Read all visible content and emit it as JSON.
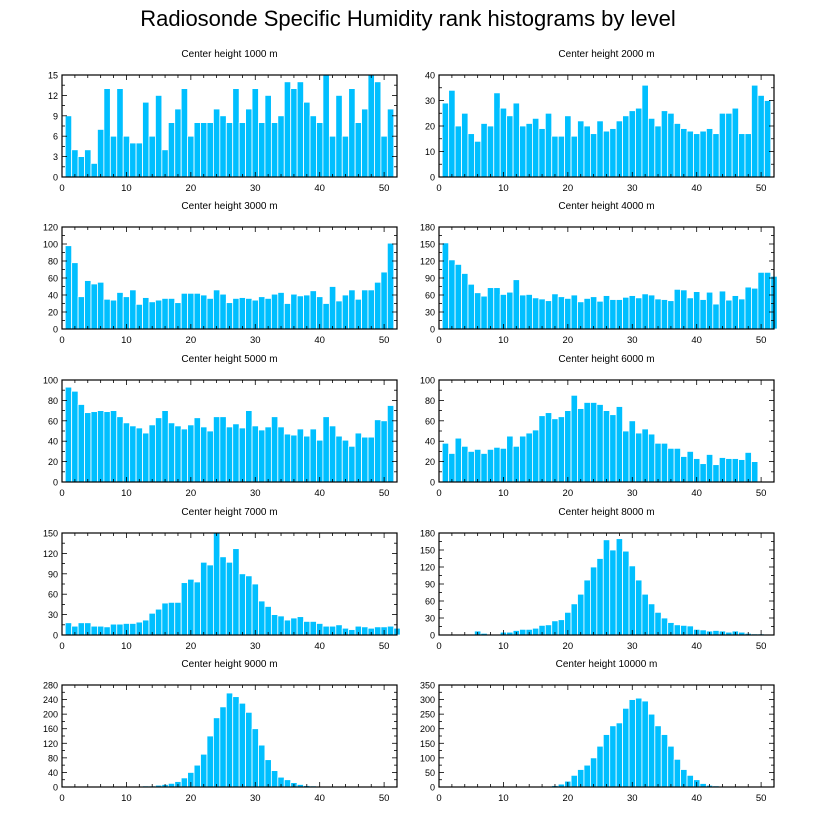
{
  "title": "Radiosonde Specific Humidity rank histograms by level",
  "colors": {
    "bar": "#00BFFF",
    "bar_edge": "#ffffff",
    "axis": "#000000"
  },
  "chart_data": [
    {
      "type": "bar",
      "title": "Center height 1000 m",
      "ylim": [
        0,
        15
      ],
      "yticks": [
        0,
        3,
        6,
        9,
        12,
        15
      ],
      "xlim": [
        0,
        52
      ],
      "xticks": [
        0,
        10,
        20,
        30,
        40,
        50
      ],
      "values": [
        9,
        4,
        3,
        4,
        2,
        7,
        13,
        6,
        13,
        6,
        5,
        5,
        11,
        6,
        12,
        4,
        8,
        10,
        13,
        6,
        8,
        8,
        8,
        10,
        9,
        8,
        13,
        8,
        10,
        13,
        8,
        12,
        8,
        9,
        14,
        13,
        14,
        11,
        9,
        8,
        15,
        6,
        12,
        6,
        13,
        8,
        10,
        15,
        14,
        6,
        10
      ]
    },
    {
      "type": "bar",
      "title": "Center height 2000 m",
      "ylim": [
        0,
        40
      ],
      "yticks": [
        0,
        10,
        20,
        30,
        40
      ],
      "xlim": [
        0,
        52
      ],
      "xticks": [
        0,
        10,
        20,
        30,
        40,
        50
      ],
      "values": [
        29,
        34,
        20,
        25,
        17,
        14,
        21,
        20,
        33,
        27,
        24,
        29,
        20,
        21,
        23,
        19,
        25,
        16,
        16,
        24,
        16,
        22,
        20,
        17,
        22,
        18,
        19,
        22,
        24,
        26,
        27,
        36,
        23,
        20,
        26,
        25,
        21,
        19,
        18,
        17,
        18,
        19,
        17,
        25,
        25,
        27,
        17,
        17,
        36,
        32,
        30
      ]
    },
    {
      "type": "bar",
      "title": "Center height 3000 m",
      "ylim": [
        0,
        120
      ],
      "yticks": [
        0,
        20,
        40,
        60,
        80,
        100,
        120
      ],
      "xlim": [
        0,
        52
      ],
      "xticks": [
        0,
        10,
        20,
        30,
        40,
        50
      ],
      "values": [
        98,
        78,
        38,
        57,
        53,
        55,
        35,
        34,
        43,
        38,
        46,
        29,
        37,
        32,
        34,
        36,
        36,
        31,
        42,
        42,
        42,
        40,
        36,
        46,
        41,
        31,
        36,
        37,
        36,
        34,
        38,
        36,
        41,
        43,
        30,
        41,
        39,
        40,
        45,
        38,
        30,
        50,
        33,
        40,
        46,
        35,
        46,
        46,
        55,
        67,
        101
      ]
    },
    {
      "type": "bar",
      "title": "Center height 4000 m",
      "ylim": [
        0,
        180
      ],
      "yticks": [
        0,
        30,
        60,
        90,
        120,
        150,
        180
      ],
      "xlim": [
        0,
        52
      ],
      "xticks": [
        0,
        10,
        20,
        30,
        40,
        50
      ],
      "values": [
        152,
        122,
        114,
        98,
        79,
        64,
        58,
        73,
        73,
        61,
        65,
        87,
        60,
        61,
        55,
        53,
        50,
        62,
        57,
        54,
        60,
        48,
        54,
        57,
        49,
        59,
        52,
        52,
        56,
        59,
        55,
        62,
        60,
        53,
        52,
        50,
        70,
        69,
        55,
        66,
        52,
        65,
        44,
        67,
        51,
        59,
        53,
        74,
        72,
        100,
        100,
        93
      ]
    },
    {
      "type": "bar",
      "title": "Center height 5000 m",
      "ylim": [
        0,
        100
      ],
      "yticks": [
        0,
        20,
        40,
        60,
        80,
        100
      ],
      "xlim": [
        0,
        52
      ],
      "xticks": [
        0,
        10,
        20,
        30,
        40,
        50
      ],
      "values": [
        93,
        89,
        76,
        68,
        69,
        70,
        69,
        70,
        64,
        58,
        55,
        53,
        48,
        56,
        63,
        70,
        58,
        55,
        52,
        56,
        63,
        54,
        50,
        64,
        64,
        54,
        57,
        53,
        70,
        55,
        51,
        54,
        64,
        54,
        47,
        46,
        52,
        45,
        52,
        41,
        64,
        55,
        45,
        41,
        35,
        48,
        44,
        44,
        61,
        60,
        75
      ]
    },
    {
      "type": "bar",
      "title": "Center height 6000 m",
      "ylim": [
        0,
        100
      ],
      "yticks": [
        0,
        20,
        40,
        60,
        80,
        100
      ],
      "xlim": [
        0,
        52
      ],
      "xticks": [
        0,
        10,
        20,
        30,
        40,
        50
      ],
      "values": [
        38,
        28,
        43,
        35,
        30,
        32,
        28,
        32,
        34,
        33,
        45,
        35,
        45,
        48,
        51,
        65,
        68,
        62,
        64,
        70,
        85,
        72,
        78,
        78,
        76,
        70,
        66,
        74,
        50,
        60,
        48,
        52,
        47,
        38,
        38,
        33,
        33,
        25,
        30,
        23,
        18,
        27,
        17,
        24,
        23,
        23,
        22,
        29,
        20
      ]
    },
    {
      "type": "bar",
      "title": "Center height 7000 m",
      "ylim": [
        0,
        150
      ],
      "yticks": [
        0,
        30,
        60,
        90,
        120,
        150
      ],
      "xlim": [
        0,
        52
      ],
      "xticks": [
        0,
        10,
        20,
        30,
        40,
        50
      ],
      "values": [
        18,
        13,
        18,
        18,
        13,
        13,
        12,
        16,
        16,
        17,
        17,
        19,
        22,
        32,
        38,
        47,
        48,
        48,
        77,
        82,
        78,
        107,
        103,
        150,
        115,
        107,
        127,
        90,
        87,
        75,
        50,
        42,
        30,
        28,
        22,
        25,
        27,
        20,
        20,
        17,
        13,
        13,
        15,
        10,
        8,
        13,
        12,
        10,
        12,
        12,
        13,
        10
      ]
    },
    {
      "type": "bar",
      "title": "Center height 8000 m",
      "ylim": [
        0,
        180
      ],
      "yticks": [
        0,
        30,
        60,
        90,
        120,
        150,
        180
      ],
      "xlim": [
        0,
        52
      ],
      "xticks": [
        0,
        10,
        20,
        30,
        40,
        50
      ],
      "values": [
        0,
        0,
        0,
        0,
        0,
        7,
        3,
        0,
        0,
        5,
        5,
        8,
        10,
        10,
        12,
        17,
        18,
        25,
        27,
        40,
        55,
        72,
        97,
        120,
        135,
        168,
        150,
        170,
        148,
        122,
        97,
        72,
        55,
        40,
        30,
        22,
        18,
        17,
        16,
        10,
        9,
        7,
        8,
        7,
        5,
        7,
        5,
        3,
        2,
        2,
        1
      ]
    },
    {
      "type": "bar",
      "title": "Center height 9000 m",
      "ylim": [
        0,
        280
      ],
      "yticks": [
        0,
        40,
        80,
        120,
        160,
        200,
        240,
        280
      ],
      "xlim": [
        0,
        52
      ],
      "xticks": [
        0,
        10,
        20,
        30,
        40,
        50
      ],
      "values": [
        0,
        0,
        0,
        0,
        0,
        0,
        0,
        0,
        0,
        0,
        2,
        2,
        3,
        3,
        5,
        7,
        10,
        15,
        25,
        40,
        60,
        90,
        140,
        190,
        220,
        258,
        248,
        230,
        205,
        160,
        115,
        75,
        45,
        27,
        20,
        12,
        7,
        4,
        3,
        2,
        1,
        1,
        1,
        0,
        0,
        2,
        0,
        0,
        0,
        0,
        0
      ]
    },
    {
      "type": "bar",
      "title": "Center height 10000 m",
      "ylim": [
        0,
        350
      ],
      "yticks": [
        0,
        50,
        100,
        150,
        200,
        250,
        300,
        350
      ],
      "xlim": [
        0,
        52
      ],
      "xticks": [
        0,
        10,
        20,
        30,
        40,
        50
      ],
      "values": [
        0,
        0,
        0,
        0,
        0,
        0,
        0,
        0,
        0,
        0,
        0,
        0,
        0,
        0,
        0,
        0,
        3,
        5,
        10,
        20,
        40,
        60,
        75,
        100,
        140,
        180,
        210,
        220,
        270,
        300,
        305,
        295,
        250,
        210,
        180,
        140,
        95,
        60,
        40,
        25,
        12,
        6,
        4,
        2,
        1,
        1,
        0,
        0,
        0,
        0,
        0
      ]
    }
  ]
}
